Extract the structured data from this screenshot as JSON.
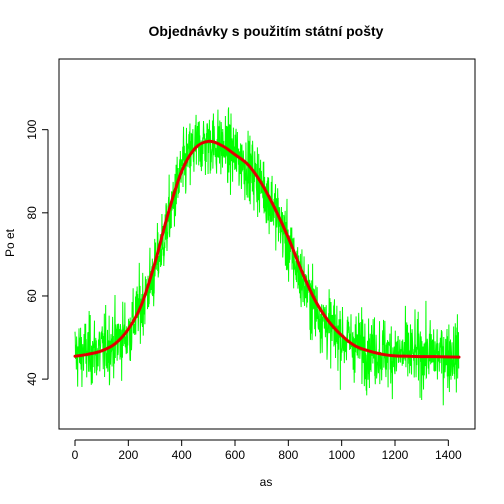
{
  "chart_data": {
    "type": "line",
    "title": "Objednávky s použitím státní pošty",
    "xlabel": "as",
    "ylabel": "Po et",
    "xlim": [
      -60,
      1500
    ],
    "ylim": [
      28,
      117
    ],
    "x_ticks": [
      0,
      200,
      400,
      600,
      800,
      1000,
      1200,
      1400
    ],
    "y_ticks": [
      40,
      60,
      80,
      100
    ],
    "grid": false,
    "legend": "none",
    "series": [
      {
        "kind": "raw",
        "color": "#00ff00",
        "n_points": 1440,
        "x_start": 0,
        "x_end": 1439,
        "baseline": [
          [
            0,
            46
          ],
          [
            100,
            47
          ],
          [
            200,
            51
          ],
          [
            250,
            58
          ],
          [
            300,
            66
          ],
          [
            350,
            78
          ],
          [
            400,
            90
          ],
          [
            450,
            96
          ],
          [
            500,
            97
          ],
          [
            550,
            96
          ],
          [
            600,
            94
          ],
          [
            650,
            91
          ],
          [
            700,
            87
          ],
          [
            750,
            81
          ],
          [
            800,
            72
          ],
          [
            850,
            64
          ],
          [
            900,
            57
          ],
          [
            950,
            53
          ],
          [
            1000,
            50
          ],
          [
            1100,
            47
          ],
          [
            1200,
            46
          ],
          [
            1300,
            46
          ],
          [
            1440,
            46
          ]
        ],
        "noise_amplitude": 5,
        "y_min": 33,
        "y_max": 115
      },
      {
        "kind": "smoothed",
        "color": "#e00000",
        "x": [
          0,
          50,
          100,
          150,
          200,
          250,
          300,
          350,
          400,
          450,
          500,
          550,
          600,
          650,
          700,
          750,
          800,
          850,
          900,
          950,
          1000,
          1050,
          1100,
          1150,
          1200,
          1250,
          1300,
          1350,
          1440
        ],
        "y": [
          45.5,
          46,
          46.8,
          48.5,
          52,
          58,
          68,
          80,
          90,
          95.5,
          97.2,
          96.2,
          94,
          91.5,
          87,
          81,
          74,
          66,
          59,
          54,
          50.5,
          48,
          46.8,
          46,
          45.6,
          45.5,
          45.4,
          45.4,
          45.3
        ]
      }
    ]
  }
}
